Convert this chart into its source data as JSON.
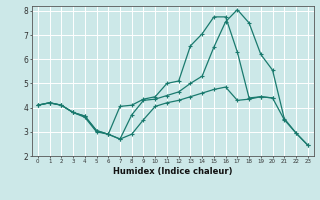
{
  "xlabel": "Humidex (Indice chaleur)",
  "background_color": "#cce8e8",
  "grid_color": "#ffffff",
  "line_color": "#1a7a6e",
  "xlim": [
    -0.5,
    23.5
  ],
  "ylim": [
    2,
    8.2
  ],
  "xticks": [
    0,
    1,
    2,
    3,
    4,
    5,
    6,
    7,
    8,
    9,
    10,
    11,
    12,
    13,
    14,
    15,
    16,
    17,
    18,
    19,
    20,
    21,
    22,
    23
  ],
  "yticks": [
    2,
    3,
    4,
    5,
    6,
    7,
    8
  ],
  "line_top_x": [
    0,
    1,
    2,
    3,
    4,
    5,
    6,
    7,
    8,
    9,
    10,
    11,
    12,
    13,
    14,
    15,
    16,
    17,
    18,
    19,
    20
  ],
  "line_top_y": [
    4.1,
    4.2,
    4.1,
    3.8,
    3.6,
    3.0,
    2.9,
    4.05,
    4.1,
    4.35,
    4.45,
    5.0,
    5.1,
    6.55,
    7.05,
    7.75,
    7.75,
    6.3,
    4.4,
    4.45,
    4.4
  ],
  "line_mid_x": [
    0,
    1,
    2,
    3,
    4,
    5,
    6,
    7,
    8,
    9,
    10,
    11,
    12,
    13,
    14,
    15,
    16,
    17,
    18,
    19,
    20,
    21,
    22,
    23
  ],
  "line_mid_y": [
    4.1,
    4.2,
    4.1,
    3.8,
    3.65,
    3.05,
    2.9,
    2.7,
    3.7,
    4.3,
    4.35,
    4.5,
    4.65,
    5.0,
    5.3,
    6.5,
    7.55,
    8.05,
    7.5,
    6.2,
    5.55,
    3.55,
    2.95,
    2.45
  ],
  "line_bot_x": [
    0,
    1,
    2,
    3,
    4,
    5,
    6,
    7,
    8,
    9,
    10,
    11,
    12,
    13,
    14,
    15,
    16,
    17,
    18,
    19,
    20,
    21,
    22,
    23
  ],
  "line_bot_y": [
    4.1,
    4.2,
    4.1,
    3.8,
    3.65,
    3.05,
    2.9,
    2.7,
    2.9,
    3.5,
    4.05,
    4.2,
    4.3,
    4.45,
    4.6,
    4.75,
    4.85,
    4.3,
    4.35,
    4.45,
    4.4,
    3.5,
    2.95,
    2.45
  ]
}
